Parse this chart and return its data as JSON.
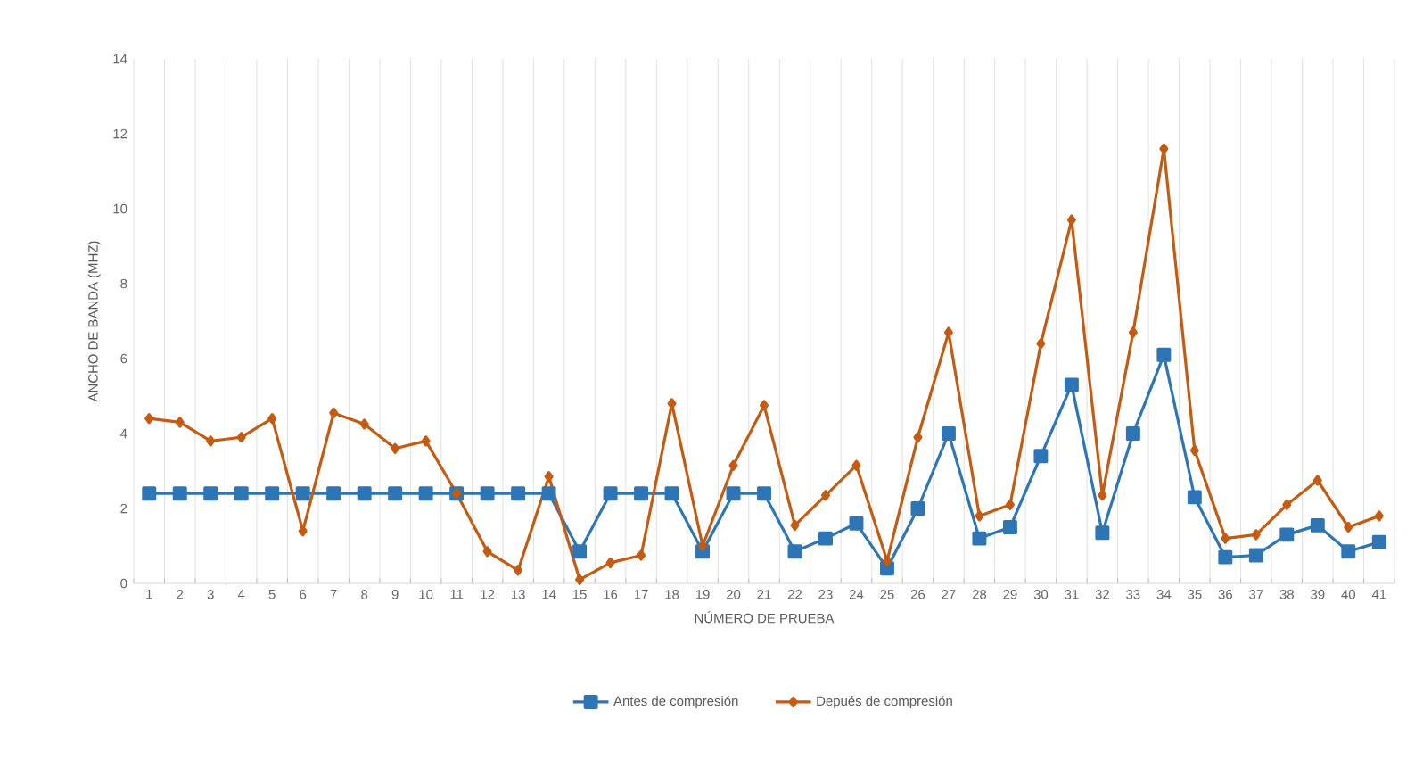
{
  "chart_data": {
    "type": "line",
    "xlabel": "NÚMERO DE PRUEBA",
    "ylabel": "ANCHO DE BANDA (MHZ)",
    "categories": [
      "1",
      "2",
      "3",
      "4",
      "5",
      "6",
      "7",
      "8",
      "9",
      "10",
      "11",
      "12",
      "13",
      "14",
      "15",
      "16",
      "17",
      "18",
      "19",
      "20",
      "21",
      "22",
      "23",
      "24",
      "25",
      "26",
      "27",
      "28",
      "29",
      "30",
      "31",
      "32",
      "33",
      "34",
      "35",
      "36",
      "37",
      "38",
      "39",
      "40",
      "41"
    ],
    "series": [
      {
        "name": "Antes de compresión",
        "color": "#2e75b6",
        "marker": "square",
        "values": [
          2.4,
          2.4,
          2.4,
          2.4,
          2.4,
          2.4,
          2.4,
          2.4,
          2.4,
          2.4,
          2.4,
          2.4,
          2.4,
          2.4,
          0.85,
          2.4,
          2.4,
          2.4,
          0.85,
          2.4,
          2.4,
          0.85,
          1.2,
          1.6,
          0.4,
          2.0,
          4.0,
          1.2,
          1.5,
          3.4,
          5.3,
          1.35,
          4.0,
          6.1,
          2.3,
          0.7,
          0.75,
          1.3,
          1.55,
          0.85,
          1.1
        ]
      },
      {
        "name": "Depués de compresión",
        "color": "#c55a11",
        "marker": "diamond",
        "values": [
          4.4,
          4.3,
          3.8,
          3.9,
          4.4,
          1.4,
          4.55,
          4.25,
          3.6,
          3.8,
          2.4,
          0.85,
          0.35,
          2.85,
          0.1,
          0.55,
          0.75,
          4.8,
          1.0,
          3.15,
          4.75,
          1.55,
          2.35,
          3.15,
          0.6,
          3.9,
          6.7,
          1.8,
          2.1,
          6.4,
          9.7,
          2.35,
          6.7,
          11.6,
          3.55,
          1.2,
          1.3,
          2.1,
          2.75,
          1.5,
          1.8
        ]
      }
    ],
    "ylim": [
      0,
      14
    ],
    "yticks": [
      0,
      2,
      4,
      6,
      8,
      10,
      12,
      14
    ],
    "grid": "x",
    "legend": "bottom",
    "line_style": "solid"
  }
}
